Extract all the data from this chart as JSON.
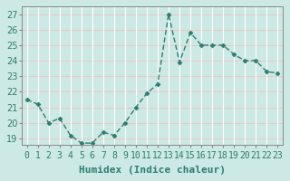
{
  "x": [
    0,
    1,
    2,
    3,
    4,
    5,
    6,
    7,
    8,
    9,
    10,
    11,
    12,
    13,
    14,
    15,
    16,
    17,
    18,
    19,
    20,
    21,
    22,
    23
  ],
  "y": [
    21.5,
    21.2,
    20.0,
    20.3,
    19.2,
    18.7,
    18.7,
    19.4,
    19.2,
    20.0,
    21.0,
    21.9,
    22.5,
    27.0,
    23.9,
    25.8,
    25.0,
    25.0,
    25.0,
    24.4,
    24.0,
    24.0,
    23.3,
    23.2
  ],
  "line_color": "#2d7d6e",
  "marker": "D",
  "marker_size": 2.5,
  "bg_color": "#cce9e5",
  "grid_h_color": "#e8c8c8",
  "grid_v_color": "#ffffff",
  "xlabel": "Humidex (Indice chaleur)",
  "ylim_min": 18.6,
  "ylim_max": 27.5,
  "yticks": [
    19,
    20,
    21,
    22,
    23,
    24,
    25,
    26,
    27
  ],
  "xtick_labels": [
    "0",
    "1",
    "2",
    "3",
    "4",
    "5",
    "6",
    "7",
    "8",
    "9",
    "10",
    "11",
    "12",
    "13",
    "14",
    "15",
    "16",
    "17",
    "18",
    "19",
    "20",
    "21",
    "22",
    "23"
  ],
  "xlabel_fontsize": 8,
  "tick_fontsize": 7
}
